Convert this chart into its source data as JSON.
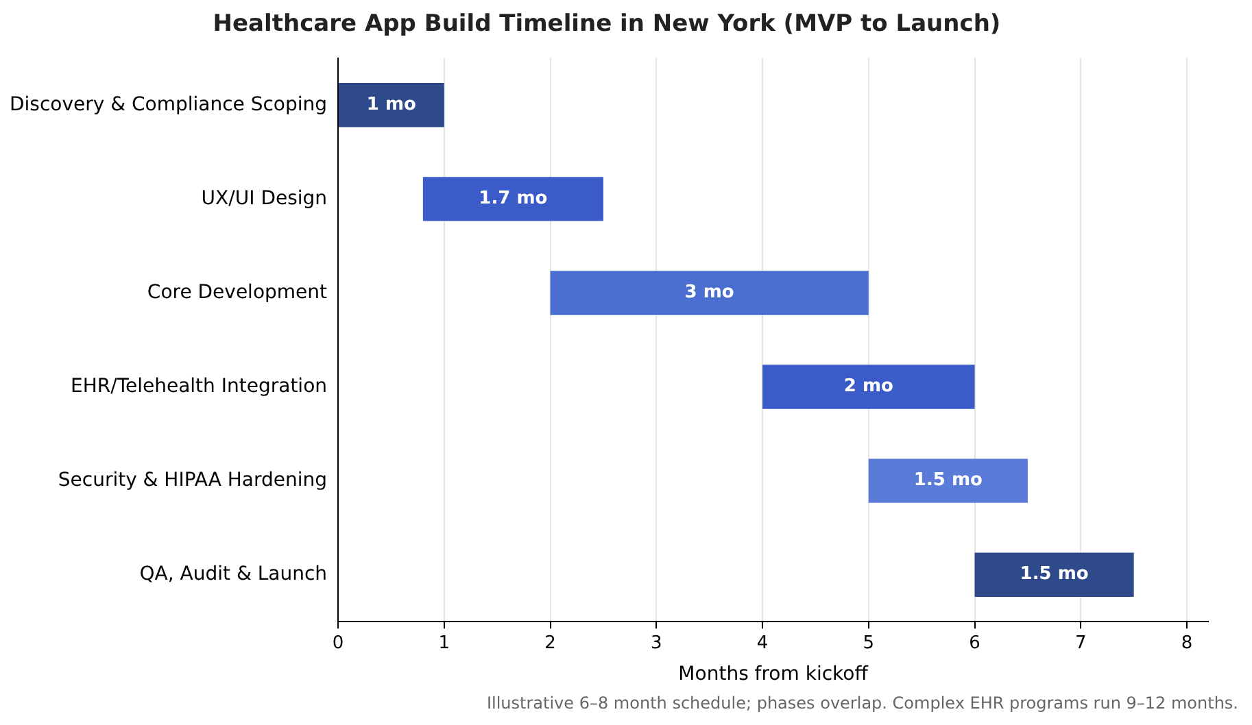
{
  "chart_data": {
    "type": "bar",
    "orientation": "horizontal",
    "title": "Healthcare App Build Timeline in New York (MVP to Launch)",
    "xlabel": "Months from kickoff",
    "categories": [
      "Discovery & Compliance Scoping",
      "UX/UI Design",
      "Core Development",
      "EHR/Telehealth Integration",
      "Security & HIPAA Hardening",
      "QA, Audit & Launch"
    ],
    "base": [
      0,
      0.8,
      2,
      4,
      5,
      6
    ],
    "values": [
      1,
      1.7,
      3,
      2,
      1.5,
      1.5
    ],
    "colors": [
      "#2e4a8b",
      "#3b5bc9",
      "#4a6fd1",
      "#3b5bc9",
      "#5a7bd8",
      "#2e4a8b"
    ],
    "value_labels": [
      "1 mo",
      "1.7 mo",
      "3 mo",
      "2 mo",
      "1.5 mo",
      "1.5 mo"
    ],
    "xlim": [
      0,
      8.2
    ],
    "xticks": [
      0,
      1,
      2,
      3,
      4,
      5,
      6,
      7,
      8
    ],
    "grid": "x",
    "annotations": [
      "Illustrative 6–8 month schedule; phases overlap. Complex EHR programs run 9–12 months."
    ]
  }
}
